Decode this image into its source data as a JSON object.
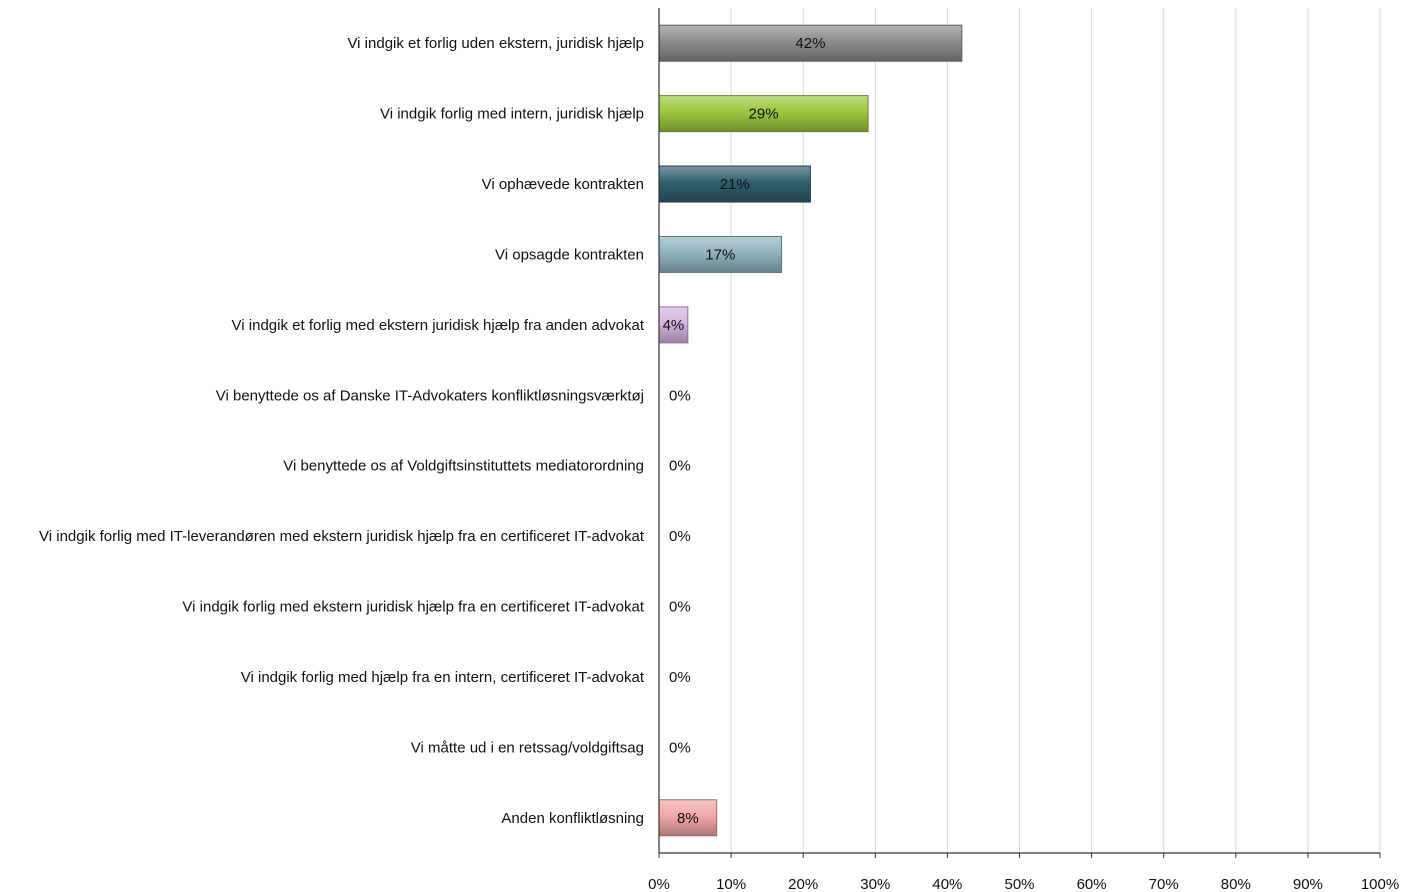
{
  "chart_data": {
    "type": "bar",
    "orientation": "horizontal",
    "title": "",
    "xlabel": "",
    "ylabel": "",
    "xlim": [
      0,
      100
    ],
    "grid": true,
    "legend": "none",
    "categories": [
      "Vi indgik et forlig uden ekstern, juridisk hjælp",
      "Vi indgik forlig med intern, juridisk hjælp",
      "Vi ophævede kontrakten",
      "Vi opsagde kontrakten",
      "Vi indgik et forlig med ekstern juridisk hjælp fra anden advokat",
      "Vi benyttede os af Danske IT-Advokaters konfliktløsningsværktøj",
      "Vi benyttede os af Voldgiftsinstituttets mediatorordning",
      "Vi indgik forlig med IT-leverandøren med ekstern juridisk hjælp fra en certificeret IT-advokat",
      "Vi indgik forlig med ekstern juridisk hjælp fra en certificeret IT-advokat",
      "Vi indgik forlig med hjælp fra en intern, certificeret IT-advokat",
      "Vi måtte ud i en retssag/voldgiftsag",
      "Anden konfliktløsning"
    ],
    "values": [
      42,
      29,
      21,
      17,
      4,
      0,
      0,
      0,
      0,
      0,
      0,
      8
    ],
    "value_labels": [
      "42%",
      "29%",
      "21%",
      "17%",
      "4%",
      "0%",
      "0%",
      "0%",
      "0%",
      "0%",
      "0%",
      "8%"
    ],
    "colors": [
      "#8c8c8c",
      "#9bc73e",
      "#2f5f6e",
      "#8fb3bf",
      "#d4b3e0",
      "#cccccc",
      "#cccccc",
      "#cccccc",
      "#cccccc",
      "#cccccc",
      "#cccccc",
      "#f2a7a7"
    ],
    "x_ticks": [
      0,
      10,
      20,
      30,
      40,
      50,
      60,
      70,
      80,
      90,
      100
    ],
    "x_tick_labels": [
      "0%",
      "10%",
      "20%",
      "30%",
      "40%",
      "50%",
      "60%",
      "70%",
      "80%",
      "90%",
      "100%"
    ]
  }
}
